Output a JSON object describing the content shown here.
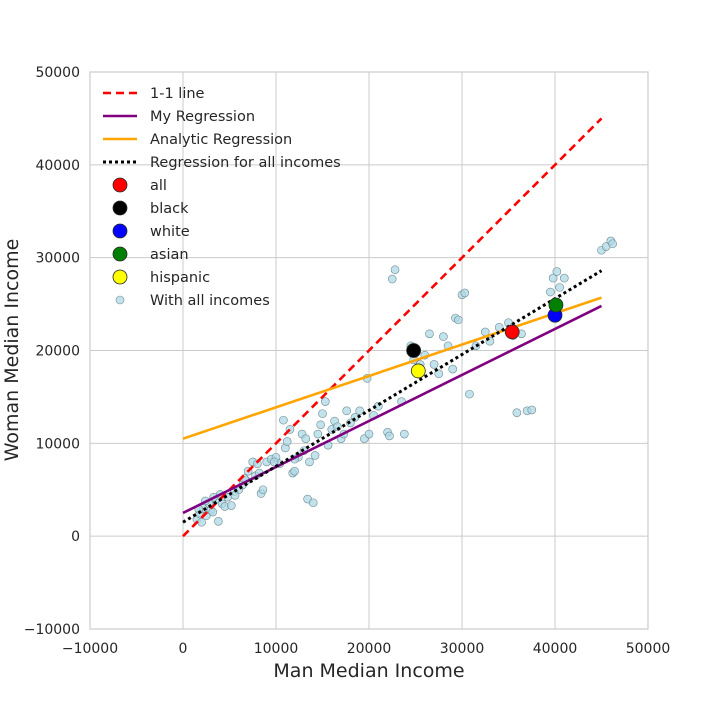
{
  "chart_data": {
    "type": "scatter",
    "xlabel": "Man Median Income",
    "ylabel": "Woman Median Income",
    "xlim": [
      -10000,
      50000
    ],
    "ylim": [
      -10000,
      50000
    ],
    "x_ticks": [
      -10000,
      0,
      10000,
      20000,
      30000,
      40000,
      50000
    ],
    "y_ticks": [
      -10000,
      0,
      10000,
      20000,
      30000,
      40000,
      50000
    ],
    "x_tick_labels": [
      "−10000",
      "0",
      "10000",
      "20000",
      "30000",
      "40000",
      "50000"
    ],
    "y_tick_labels": [
      "−10000",
      "0",
      "10000",
      "20000",
      "30000",
      "40000",
      "50000"
    ],
    "grid": true,
    "legend_position": "top-left",
    "lines": [
      {
        "name": "1-1 line",
        "color": "#ff0000",
        "style": "dashed",
        "x": [
          0,
          45000
        ],
        "y": [
          0,
          45000
        ]
      },
      {
        "name": "My Regression",
        "color": "#800080",
        "style": "solid",
        "x": [
          0,
          45000
        ],
        "y": [
          2500,
          24800
        ]
      },
      {
        "name": "Analytic Regression",
        "color": "#ffa500",
        "style": "solid",
        "x": [
          0,
          45000
        ],
        "y": [
          10500,
          25700
        ]
      },
      {
        "name": "Regression for all incomes",
        "color": "#000000",
        "style": "dotted",
        "x": [
          0,
          45000
        ],
        "y": [
          1500,
          28600
        ]
      }
    ],
    "groups": [
      {
        "name": "all",
        "color": "#ff0000",
        "x": 35400,
        "y": 22000
      },
      {
        "name": "black",
        "color": "#000000",
        "x": 24800,
        "y": 20000
      },
      {
        "name": "white",
        "color": "#0000ff",
        "x": 40000,
        "y": 23800
      },
      {
        "name": "asian",
        "color": "#008000",
        "x": 40100,
        "y": 24900
      },
      {
        "name": "hispanic",
        "color": "#ffff00",
        "x": 25300,
        "y": 17800
      }
    ],
    "scatter": {
      "name": "With all incomes",
      "color": "#add8e6",
      "points": [
        [
          1500,
          1800
        ],
        [
          1800,
          2400
        ],
        [
          2000,
          1500
        ],
        [
          2200,
          3000
        ],
        [
          2500,
          2200
        ],
        [
          2800,
          3500
        ],
        [
          3000,
          2800
        ],
        [
          3200,
          2600
        ],
        [
          3600,
          4000
        ],
        [
          3800,
          1600
        ],
        [
          4000,
          4500
        ],
        [
          4200,
          3500
        ],
        [
          4500,
          3200
        ],
        [
          4800,
          4200
        ],
        [
          5200,
          3300
        ],
        [
          5500,
          4800
        ],
        [
          6000,
          5000
        ],
        [
          6400,
          5500
        ],
        [
          6800,
          6000
        ],
        [
          7000,
          7000
        ],
        [
          7500,
          8000
        ],
        [
          7800,
          6500
        ],
        [
          8000,
          7800
        ],
        [
          8200,
          6800
        ],
        [
          8400,
          4600
        ],
        [
          8600,
          5000
        ],
        [
          9000,
          8000
        ],
        [
          9500,
          8300
        ],
        [
          10000,
          8500
        ],
        [
          10400,
          7800
        ],
        [
          10800,
          12500
        ],
        [
          11000,
          9500
        ],
        [
          11200,
          10200
        ],
        [
          11500,
          11500
        ],
        [
          11800,
          6800
        ],
        [
          12000,
          7000
        ],
        [
          12400,
          8500
        ],
        [
          12800,
          11000
        ],
        [
          13000,
          9200
        ],
        [
          13200,
          10500
        ],
        [
          13400,
          4000
        ],
        [
          13600,
          8000
        ],
        [
          14000,
          3600
        ],
        [
          14200,
          8700
        ],
        [
          14500,
          11000
        ],
        [
          14800,
          12000
        ],
        [
          15000,
          13200
        ],
        [
          15300,
          14500
        ],
        [
          15600,
          9800
        ],
        [
          16000,
          11500
        ],
        [
          16300,
          12400
        ],
        [
          16600,
          11800
        ],
        [
          17000,
          10500
        ],
        [
          17300,
          11000
        ],
        [
          17600,
          13500
        ],
        [
          18000,
          12200
        ],
        [
          18500,
          12800
        ],
        [
          19000,
          13500
        ],
        [
          19500,
          10500
        ],
        [
          19800,
          17000
        ],
        [
          20000,
          11000
        ],
        [
          20500,
          13000
        ],
        [
          21000,
          14000
        ],
        [
          22000,
          11200
        ],
        [
          22200,
          10800
        ],
        [
          22500,
          27700
        ],
        [
          22800,
          28700
        ],
        [
          23500,
          14500
        ],
        [
          23800,
          11000
        ],
        [
          24500,
          20500
        ],
        [
          24800,
          19000
        ],
        [
          25500,
          18500
        ],
        [
          26000,
          19500
        ],
        [
          26500,
          21800
        ],
        [
          27000,
          18500
        ],
        [
          27500,
          17500
        ],
        [
          28000,
          21500
        ],
        [
          28500,
          20500
        ],
        [
          29000,
          18000
        ],
        [
          29300,
          23500
        ],
        [
          29600,
          23300
        ],
        [
          30000,
          26000
        ],
        [
          30300,
          26200
        ],
        [
          30800,
          15300
        ],
        [
          31500,
          20500
        ],
        [
          32500,
          22000
        ],
        [
          33000,
          21000
        ],
        [
          34000,
          22500
        ],
        [
          35000,
          23000
        ],
        [
          35500,
          21600
        ],
        [
          35900,
          13300
        ],
        [
          36400,
          21800
        ],
        [
          37000,
          13500
        ],
        [
          37500,
          13600
        ],
        [
          39500,
          26300
        ],
        [
          39800,
          27800
        ],
        [
          40200,
          28500
        ],
        [
          41000,
          27800
        ],
        [
          45000,
          30800
        ],
        [
          45500,
          31200
        ],
        [
          46000,
          31800
        ],
        [
          46200,
          31500
        ],
        [
          40500,
          26800
        ],
        [
          12000,
          8300
        ],
        [
          9800,
          8000
        ],
        [
          6600,
          6200
        ],
        [
          5600,
          4400
        ],
        [
          2400,
          3800
        ],
        [
          1700,
          2900
        ],
        [
          3300,
          4200
        ]
      ]
    }
  }
}
